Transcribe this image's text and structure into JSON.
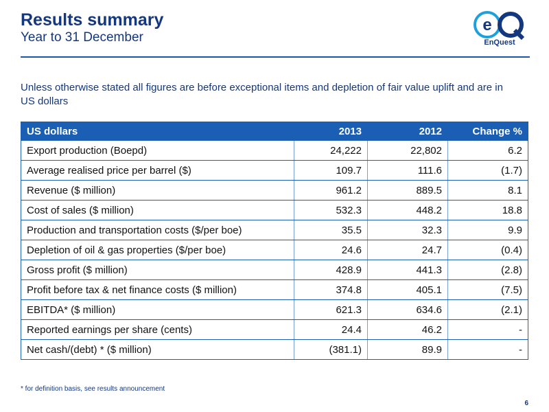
{
  "header": {
    "title": "Results summary",
    "subtitle": "Year to 31 December",
    "logo_text": "EnQuest",
    "logo_mark": "eQ"
  },
  "intro": "Unless otherwise stated all figures are before exceptional items and depletion of fair value uplift and are in US dollars",
  "table": {
    "headers": [
      "US dollars",
      "2013",
      "2012",
      "Change %"
    ],
    "rows": [
      [
        "Export production (Boepd)",
        "24,222",
        "22,802",
        "6.2"
      ],
      [
        "Average realised price per barrel ($)",
        "109.7",
        "111.6",
        "(1.7)"
      ],
      [
        "Revenue ($ million)",
        "961.2",
        "889.5",
        "8.1"
      ],
      [
        "Cost of sales ($ million)",
        "532.3",
        "448.2",
        "18.8"
      ],
      [
        "Production and transportation costs ($/per boe)",
        "35.5",
        "32.3",
        "9.9"
      ],
      [
        "Depletion of oil & gas properties ($/per boe)",
        "24.6",
        "24.7",
        "(0.4)"
      ],
      [
        "Gross profit ($ million)",
        "428.9",
        "441.3",
        "(2.8)"
      ],
      [
        "Profit before tax & net finance costs ($ million)",
        "374.8",
        "405.1",
        "(7.5)"
      ],
      [
        "EBITDA* ($ million)",
        "621.3",
        "634.6",
        "(2.1)"
      ],
      [
        "Reported earnings per share (cents)",
        "24.4",
        "46.2",
        "-"
      ],
      [
        "Net cash/(debt) * ($ million)",
        "(381.1)",
        "89.9",
        "-"
      ]
    ]
  },
  "footnote": "*  for definition basis, see results announcement",
  "page_number": "6",
  "colors": {
    "brand_blue": "#14377d",
    "header_fill": "#1a5fb4",
    "logo_cyan": "#1ea0dc"
  }
}
